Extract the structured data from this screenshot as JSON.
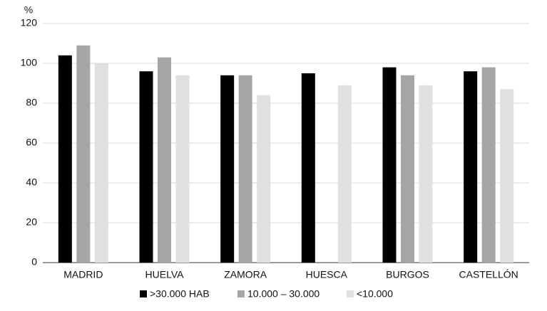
{
  "chart_data": {
    "type": "bar",
    "y_label": "%",
    "categories": [
      "MADRID",
      "HUELVA",
      "ZAMORA",
      "HUESCA",
      "BURGOS",
      "CASTELLÓN"
    ],
    "series": [
      {
        "name": ">30.000 HAB",
        "color": "#000000",
        "values": [
          104,
          96,
          94,
          95,
          98,
          96
        ]
      },
      {
        "name": "10.000 – 30.000",
        "color": "#a6a6a6",
        "values": [
          109,
          103,
          94,
          null,
          94,
          98
        ]
      },
      {
        "name": "<10.000",
        "color": "#e0e0e0",
        "values": [
          100,
          94,
          84,
          89,
          89,
          87
        ]
      }
    ],
    "ylim": [
      0,
      120
    ],
    "yticks": [
      0,
      20,
      40,
      60,
      80,
      100,
      120
    ],
    "grid": true
  }
}
